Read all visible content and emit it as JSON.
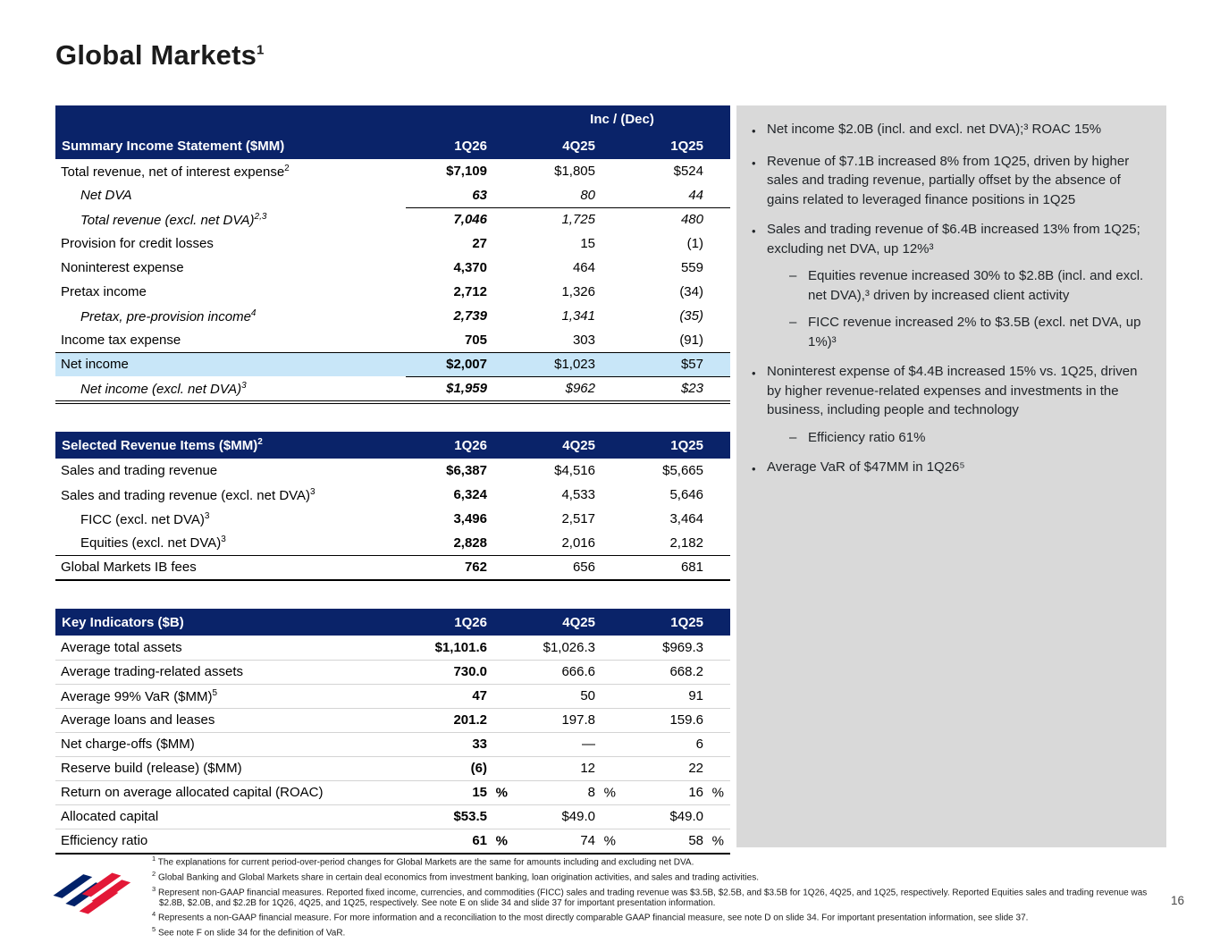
{
  "page": {
    "title": "Global Markets",
    "title_sup": "1",
    "page_number": "16"
  },
  "colors": {
    "navy": "#0a2369",
    "highlight_blue": "#c8e6f8",
    "panel_gray": "#d9d9d9",
    "brand_blue": "#012169",
    "brand_red": "#e31837"
  },
  "tables": {
    "income": {
      "inc_dec_label": "Inc / (Dec)",
      "title": "Summary Income Statement ($MM)",
      "cols": [
        "1Q26",
        "4Q25",
        "1Q25"
      ],
      "rows": [
        {
          "label": "Total revenue, net of interest expense",
          "sup": "2",
          "values": [
            "$7,109",
            "$1,805",
            "$524"
          ]
        },
        {
          "label": "Net DVA",
          "italic": true,
          "indent": true,
          "values": [
            "63",
            "80",
            "44"
          ]
        },
        {
          "label": "Total revenue (excl. net DVA)",
          "sup": "2,3",
          "italic": true,
          "indent": true,
          "line": "nums",
          "values": [
            "7,046",
            "1,725",
            "480"
          ]
        },
        {
          "label": "Provision for credit losses",
          "values": [
            "27",
            "15",
            "(1)"
          ]
        },
        {
          "label": "Noninterest expense",
          "values": [
            "4,370",
            "464",
            "559"
          ]
        },
        {
          "label": "Pretax income",
          "values": [
            "2,712",
            "1,326",
            "(34)"
          ]
        },
        {
          "label": "Pretax, pre-provision income",
          "sup": "4",
          "italic": true,
          "indent": true,
          "values": [
            "2,739",
            "1,341",
            "(35)"
          ]
        },
        {
          "label": "Income tax expense",
          "values": [
            "705",
            "303",
            "(91)"
          ]
        },
        {
          "label": "Net income",
          "highlight": true,
          "line": "full",
          "values": [
            "$2,007",
            "$1,023",
            "$57"
          ]
        },
        {
          "label": "Net income (excl. net DVA)",
          "sup": "3",
          "italic": true,
          "indent": true,
          "line": "nums",
          "values": [
            "$1,959",
            "$962",
            "$23"
          ]
        }
      ]
    },
    "revenue": {
      "title": "Selected Revenue Items ($MM)",
      "title_sup": "2",
      "cols": [
        "1Q26",
        "4Q25",
        "1Q25"
      ],
      "rows": [
        {
          "label": "Sales and trading revenue",
          "values": [
            "$6,387",
            "$4,516",
            "$5,665"
          ]
        },
        {
          "label": "Sales and trading revenue (excl. net DVA)",
          "sup": "3",
          "values": [
            "6,324",
            "4,533",
            "5,646"
          ]
        },
        {
          "label": "FICC (excl. net DVA)",
          "sup": "3",
          "indent": true,
          "values": [
            "3,496",
            "2,517",
            "3,464"
          ]
        },
        {
          "label": "Equities (excl. net DVA)",
          "sup": "3",
          "indent": true,
          "values": [
            "2,828",
            "2,016",
            "2,182"
          ]
        },
        {
          "label": "Global Markets IB fees",
          "line": "full",
          "values": [
            "762",
            "656",
            "681"
          ]
        }
      ]
    },
    "indicators": {
      "title": "Key Indicators ($B)",
      "cols": [
        "1Q26",
        "4Q25",
        "1Q25"
      ],
      "rows": [
        {
          "label": "Average total assets",
          "values": [
            "$1,101.6",
            "$1,026.3",
            "$969.3"
          ]
        },
        {
          "label": "Average trading-related assets",
          "values": [
            "730.0",
            "666.6",
            "668.2"
          ]
        },
        {
          "label": "Average 99% VaR ($MM)",
          "sup": "5",
          "values": [
            "47",
            "50",
            "91"
          ]
        },
        {
          "label": "Average loans and leases",
          "values": [
            "201.2",
            "197.8",
            "159.6"
          ]
        },
        {
          "label": "Net charge-offs ($MM)",
          "values": [
            "33",
            "—",
            "6"
          ]
        },
        {
          "label": "Reserve build (release) ($MM)",
          "values": [
            "(6)",
            "12",
            "22"
          ]
        },
        {
          "label": "Return on average allocated capital (ROAC)",
          "pct": true,
          "values": [
            "15",
            "8",
            "16"
          ]
        },
        {
          "label": "Allocated capital",
          "values": [
            "$53.5",
            "$49.0",
            "$49.0"
          ]
        },
        {
          "label": "Efficiency ratio",
          "pct": true,
          "values": [
            "61",
            "74",
            "58"
          ]
        }
      ]
    }
  },
  "commentary": {
    "bullets": [
      {
        "text": "Net income $2.0B (incl. and excl. net DVA);³ ROAC 15%"
      },
      {
        "text": "Revenue of $7.1B increased 8% from 1Q25, driven by higher sales and trading revenue, partially offset by the absence of gains related to leveraged finance positions in 1Q25"
      },
      {
        "text": "Sales and trading revenue of $6.4B increased 13% from 1Q25; excluding net DVA, up 12%³",
        "subs": [
          "Equities revenue increased 30% to $2.8B (incl. and excl. net DVA),³ driven by increased client activity",
          "FICC revenue increased 2% to $3.5B (excl. net DVA, up 1%)³"
        ]
      },
      {
        "text": "Noninterest expense of $4.4B increased 15% vs. 1Q25, driven by higher revenue-related expenses and investments in the business, including people and technology",
        "subs": [
          "Efficiency ratio 61%"
        ]
      },
      {
        "text": "Average VaR of $47MM in 1Q26⁵"
      }
    ]
  },
  "footnotes": [
    {
      "sup": "1",
      "text": "The explanations for current period-over-period changes for Global Markets are the same for amounts including and excluding net DVA."
    },
    {
      "sup": "2",
      "text": "Global Banking and Global Markets share in certain deal economics from investment banking, loan origination activities, and sales and trading activities."
    },
    {
      "sup": "3",
      "text": "Represent non-GAAP financial measures. Reported fixed income, currencies, and commodities (FICC) sales and trading revenue was $3.5B, $2.5B, and $3.5B for 1Q26, 4Q25, and 1Q25, respectively. Reported Equities sales and trading revenue was $2.8B, $2.0B, and $2.2B for 1Q26, 4Q25, and 1Q25, respectively. See note E on slide 34 and slide 37 for important presentation information."
    },
    {
      "sup": "4",
      "text": "Represents a non-GAAP financial measure. For more information and a reconciliation to the most directly comparable GAAP financial measure, see note D on slide 34. For important presentation information, see slide 37."
    },
    {
      "sup": "5",
      "text": "See note F on slide 34 for the definition of VaR."
    }
  ]
}
